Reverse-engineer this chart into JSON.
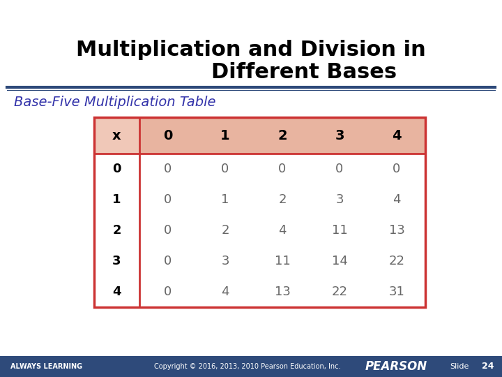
{
  "title_line1": "Multiplication and Division in",
  "title_line2": "Different Bases",
  "subtitle": "Base-Five Multiplication Table",
  "table_header": [
    "x",
    "0",
    "1",
    "2",
    "3",
    "4"
  ],
  "table_rows": [
    [
      "0",
      "0",
      "0",
      "0",
      "0",
      "0"
    ],
    [
      "1",
      "0",
      "1",
      "2",
      "3",
      "4"
    ],
    [
      "2",
      "0",
      "2",
      "4",
      "11",
      "13"
    ],
    [
      "3",
      "0",
      "3",
      "11",
      "14",
      "22"
    ],
    [
      "4",
      "0",
      "4",
      "13",
      "22",
      "31"
    ]
  ],
  "title_color": "#000000",
  "subtitle_color": "#3333aa",
  "header_bg_color": "#e8b4a0",
  "header_left_bg_color": "#f0c8b8",
  "table_border_color": "#cc3333",
  "table_inner_line_color": "#cc3333",
  "row_label_color": "#000000",
  "cell_text_color": "#666666",
  "header_text_color": "#000000",
  "footer_bg_color": "#2e4a7a",
  "footer_text_color": "#ffffff",
  "background_color": "#ffffff",
  "divider_color": "#2e4a7a",
  "copyright_text": "Copyright © 2016, 2013, 2010 Pearson Education, Inc.",
  "footer_left_text": "ALWAYS LEARNING",
  "footer_right_text": "PEARSON",
  "slide_text": "Slide",
  "slide_number": "24"
}
